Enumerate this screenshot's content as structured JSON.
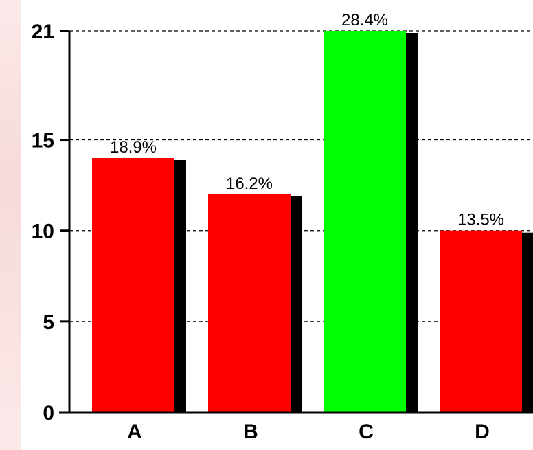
{
  "chart_data": {
    "type": "bar",
    "title": "",
    "xlabel": "",
    "ylabel": "",
    "categories": [
      "A",
      "B",
      "C",
      "D"
    ],
    "values": [
      14,
      12,
      21,
      10
    ],
    "data_labels": [
      "18.9%",
      "16.2%",
      "28.4%",
      "13.5%"
    ],
    "bar_colors": [
      "#ff0000",
      "#ff0000",
      "#00ff00",
      "#ff0000"
    ],
    "shadow_color": "#000000",
    "y_ticks": [
      0,
      5,
      10,
      15,
      21
    ],
    "y_tick_labels": [
      "0",
      "5",
      "10",
      "15",
      "21"
    ],
    "ylim": [
      0,
      21
    ],
    "grid": true,
    "grid_style": "dashed horizontal",
    "legend": "none"
  }
}
